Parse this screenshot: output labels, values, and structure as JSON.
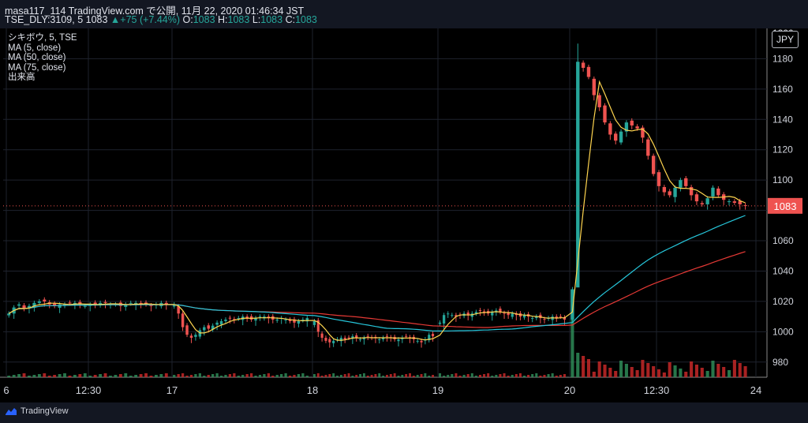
{
  "header": {
    "line1": "masa117_114 TradingView.com で公開, 11月 22, 2020 01:46:34 JST",
    "symbol": "TSE_DLY:3109, 5",
    "last": "1083",
    "change": "▲+75 (+7.44%)",
    "o_label": "O:",
    "o_value": "1083",
    "h_label": "H:",
    "h_value": "1083",
    "l_label": "L:",
    "l_value": "1083",
    "c_label": "C:",
    "c_value": "1083"
  },
  "legend": {
    "symbol": "シキボウ, 5, TSE",
    "ma5": "MA (5, close)",
    "ma50": "MA (50, close)",
    "ma75": "MA (75, close)",
    "volume": "出来高"
  },
  "currency": "JPY",
  "footer": {
    "brand": "TradingView"
  },
  "colors": {
    "up": "#26a69a",
    "down": "#ef5350",
    "ma5": "#ffd54f",
    "ma50": "#26c6da",
    "ma75": "#e53935",
    "price_tag": "#ef5350"
  },
  "chart_data": {
    "type": "candlestick",
    "timeframe": "5",
    "ylim": [
      970,
      1200
    ],
    "yticks": [
      980,
      1000,
      1020,
      1040,
      1060,
      1080,
      1100,
      1120,
      1140,
      1160,
      1180
    ],
    "last_price": 1083,
    "xticks": [
      "6",
      "12:30",
      "17",
      "18",
      "19",
      "20",
      "12:30",
      "24"
    ],
    "sessions": [
      {
        "label": "16 (after 6)",
        "closes": [
          1012,
          1016,
          1018,
          1015,
          1017,
          1019,
          1020,
          1020,
          1018,
          1017,
          1018,
          1018,
          1019,
          1019,
          1018,
          1017,
          1018,
          1018,
          1019,
          1019,
          1018,
          1018,
          1017,
          1018,
          1019,
          1019,
          1018,
          1018,
          1017,
          1018,
          1019,
          1018
        ]
      },
      {
        "label": "17",
        "closes": [
          1018,
          1012,
          1003,
          998,
          996,
          998,
          1001,
          1003,
          1002,
          1004,
          1006,
          1007,
          1008,
          1009,
          1008,
          1009,
          1010,
          1009,
          1008,
          1009,
          1010,
          1010,
          1009,
          1008,
          1008,
          1009,
          1008,
          1007,
          1006,
          1007,
          1008,
          1009
        ]
      },
      {
        "label": "18",
        "closes": [
          1007,
          1000,
          996,
          994,
          993,
          994,
          995,
          996,
          995,
          996,
          997,
          996,
          995,
          996,
          997,
          996,
          996,
          995,
          996,
          997,
          996,
          995,
          995,
          996,
          997,
          996,
          995,
          994,
          993,
          995,
          998,
          997
        ]
      },
      {
        "label": "19",
        "closes": [
          1006,
          1011,
          1012,
          1011,
          1010,
          1011,
          1012,
          1011,
          1012,
          1013,
          1014,
          1013,
          1012,
          1013,
          1014,
          1013,
          1012,
          1011,
          1012,
          1011,
          1010,
          1011,
          1010,
          1009,
          1010,
          1009,
          1008,
          1009,
          1010,
          1009,
          1010,
          1008
        ]
      },
      {
        "label": "20",
        "closes": [
          1028,
          1178,
          1174,
          1168,
          1156,
          1148,
          1138,
          1130,
          1126,
          1132,
          1138,
          1136,
          1134,
          1128,
          1116,
          1104,
          1096,
          1092,
          1090,
          1095,
          1100,
          1096,
          1090,
          1086,
          1084,
          1088,
          1095,
          1090,
          1087,
          1086,
          1085,
          1084,
          1083
        ]
      }
    ],
    "volume": {
      "max_note": "spike at 20 open"
    }
  }
}
